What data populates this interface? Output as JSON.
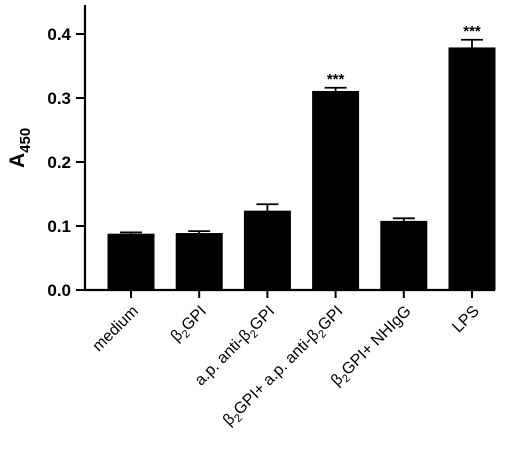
{
  "chart_data": {
    "type": "bar",
    "title": "",
    "xlabel": "",
    "ylabel": {
      "main": "A",
      "sub": "450"
    },
    "ylim": [
      0,
      0.4
    ],
    "yticks": [
      "0.0",
      "0.1",
      "0.2",
      "0.3",
      "0.4"
    ],
    "ytick_values": [
      0,
      0.1,
      0.2,
      0.3,
      0.4
    ],
    "categories": [
      {
        "pre": "",
        "sub": "",
        "post": "medium"
      },
      {
        "pre": "β",
        "sub": "2",
        "post": "GPI"
      },
      {
        "pre": "a.p. anti-β",
        "sub": "2",
        "post": "GPI"
      },
      {
        "pre": "β",
        "sub": "2",
        "post": "GPI+ a.p. anti-β",
        "sub2": "2",
        "post2": "GPI"
      },
      {
        "pre": "β",
        "sub": "2",
        "post": "GPI+ NHIgG"
      },
      {
        "pre": "",
        "sub": "",
        "post": "LPS"
      }
    ],
    "values": [
      0.088,
      0.089,
      0.124,
      0.311,
      0.108,
      0.379
    ],
    "errors": [
      0.002,
      0.003,
      0.01,
      0.005,
      0.004,
      0.012
    ],
    "significance": [
      "",
      "",
      "",
      "***",
      "",
      "***"
    ],
    "grid": false,
    "bar_color": "#000000"
  }
}
